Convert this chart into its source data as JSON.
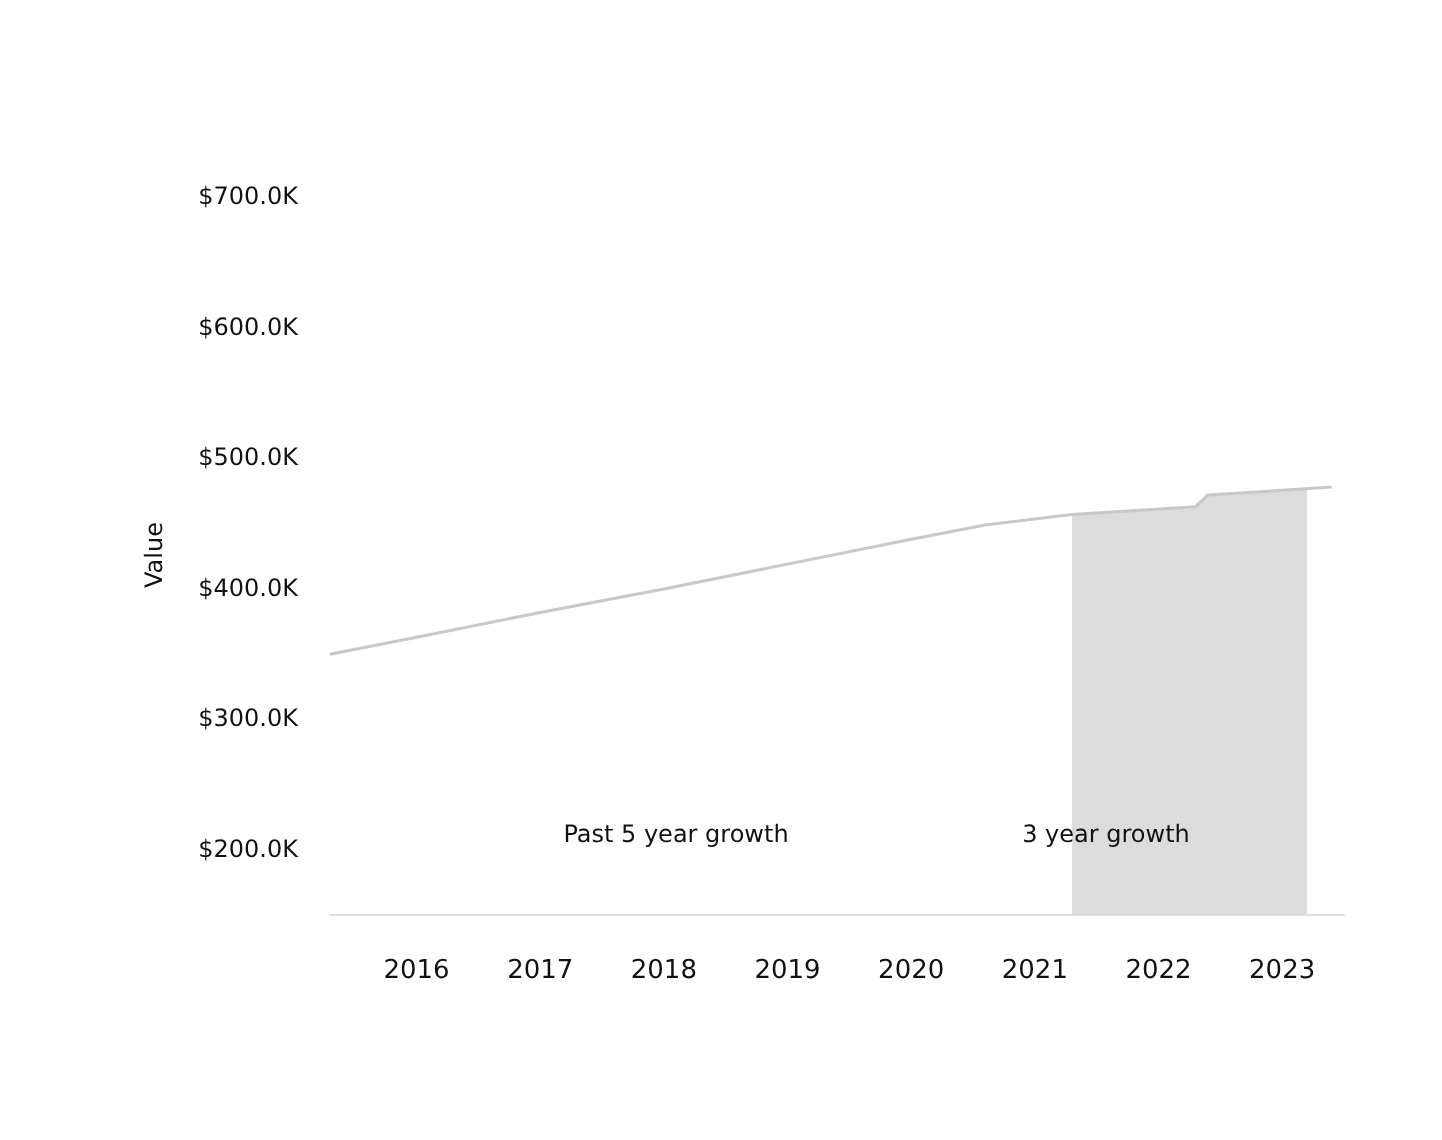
{
  "chart_data": {
    "type": "line",
    "ylabel": "Value",
    "series": [
      {
        "color": "#c8c8c8",
        "x": [
          2015.3,
          2016,
          2017,
          2018,
          2019,
          2020,
          2020.6,
          2021.3,
          2022.3,
          2022.4,
          2023.4
        ],
        "values": [
          349000,
          362000,
          381000,
          399000,
          418000,
          437000,
          448000,
          456000,
          462000,
          471000,
          477000
        ]
      },
      {
        "type": "area",
        "color": "#dcdcdc",
        "x": [
          2021.3,
          2022.3,
          2022.4,
          2023.2
        ],
        "values": [
          456000,
          462000,
          471000,
          475000
        ]
      }
    ],
    "xlim": [
      2015.3,
      2023.5
    ],
    "xticks": [
      2016,
      2017,
      2018,
      2019,
      2020,
      2021,
      2022,
      2023
    ],
    "ylim": [
      150000,
      700000
    ],
    "yticks": [
      {
        "value": 200000,
        "label": "$200.0K"
      },
      {
        "value": 300000,
        "label": "$300.0K"
      },
      {
        "value": 400000,
        "label": "$400.0K"
      },
      {
        "value": 500000,
        "label": "$500.0K"
      },
      {
        "value": 600000,
        "label": "$600.0K"
      },
      {
        "value": 700000,
        "label": "$700.0K"
      }
    ],
    "annotations": [
      "Past 5 year growth",
      "3 year growth"
    ],
    "grid": false,
    "marker": "none"
  }
}
